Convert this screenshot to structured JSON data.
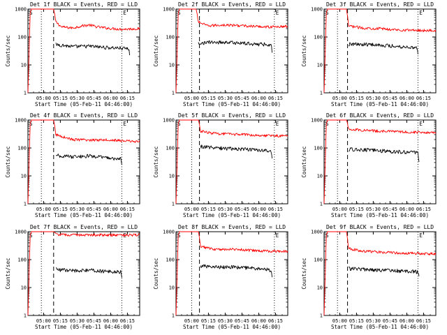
{
  "figure": {
    "xlabel": "Start Time (05-Feb-11 04:46:00)",
    "ylabel": "Counts/sec",
    "y_ticks": [
      "1",
      "10",
      "100",
      "1000"
    ],
    "x_ticks": [
      "05:00",
      "05:15",
      "05:30",
      "05:45",
      "06:00",
      "06:15"
    ],
    "marker_start": "S",
    "marker_end": "E"
  },
  "chart_data": [
    {
      "type": "line",
      "title": "Det 1f  BLACK = Events, RED = LLD",
      "x_unit": "minutes after 04:46",
      "ylim": [
        1,
        1000
      ],
      "y_scale": "log",
      "xlim": [
        0,
        100
      ],
      "x_ticks": [
        14,
        29,
        44,
        59,
        74,
        89
      ],
      "series": [
        {
          "name": "LLD",
          "color": "#ff0000",
          "points": [
            [
              0,
              1
            ],
            [
              2,
              700
            ],
            [
              3,
              1000
            ],
            [
              23,
              1000
            ],
            [
              25,
              350
            ],
            [
              30,
              230
            ],
            [
              40,
              210
            ],
            [
              48,
              250
            ],
            [
              55,
              270
            ],
            [
              62,
              230
            ],
            [
              75,
              200
            ],
            [
              85,
              190
            ],
            [
              100,
              200
            ]
          ]
        },
        {
          "name": "Events",
          "color": "#000000",
          "points": [
            [
              25,
              55
            ],
            [
              40,
              45
            ],
            [
              55,
              47
            ],
            [
              70,
              42
            ],
            [
              83,
              40
            ],
            [
              90,
              38
            ],
            [
              91,
              25
            ]
          ]
        }
      ],
      "vlines": [
        {
          "x": 12,
          "style": "dotted"
        },
        {
          "x": 23,
          "style": "dashed"
        },
        {
          "x": 84,
          "style": "dotted"
        }
      ]
    },
    {
      "type": "line",
      "title": "Det 2f  BLACK = Events, RED = LLD",
      "x_unit": "minutes after 04:46",
      "ylim": [
        1,
        1000
      ],
      "y_scale": "log",
      "xlim": [
        0,
        100
      ],
      "x_ticks": [
        14,
        29,
        44,
        59,
        74,
        89
      ],
      "series": [
        {
          "name": "LLD",
          "color": "#ff0000",
          "points": [
            [
              0,
              1
            ],
            [
              2,
              700
            ],
            [
              3,
              1000
            ],
            [
              18,
              1000
            ],
            [
              20,
              350
            ],
            [
              28,
              250
            ],
            [
              40,
              270
            ],
            [
              55,
              260
            ],
            [
              70,
              240
            ],
            [
              85,
              230
            ],
            [
              100,
              240
            ]
          ]
        },
        {
          "name": "Events",
          "color": "#000000",
          "points": [
            [
              20,
              60
            ],
            [
              30,
              65
            ],
            [
              45,
              65
            ],
            [
              60,
              60
            ],
            [
              75,
              55
            ],
            [
              85,
              55
            ],
            [
              86,
              30
            ]
          ]
        }
      ],
      "vlines": [
        {
          "x": 14,
          "style": "dotted"
        },
        {
          "x": 21,
          "style": "dashed"
        },
        {
          "x": 88,
          "style": "dotted"
        }
      ]
    },
    {
      "type": "line",
      "title": "Det 3f  BLACK = Events, RED = LLD",
      "x_unit": "minutes after 04:46",
      "ylim": [
        1,
        1000
      ],
      "y_scale": "log",
      "xlim": [
        0,
        100
      ],
      "x_ticks": [
        14,
        29,
        44,
        59,
        74,
        89
      ],
      "series": [
        {
          "name": "LLD",
          "color": "#ff0000",
          "points": [
            [
              0,
              1
            ],
            [
              2,
              700
            ],
            [
              3,
              1000
            ],
            [
              20,
              1000
            ],
            [
              22,
              250
            ],
            [
              35,
              210
            ],
            [
              50,
              200
            ],
            [
              65,
              180
            ],
            [
              80,
              175
            ],
            [
              100,
              170
            ]
          ]
        },
        {
          "name": "Events",
          "color": "#000000",
          "points": [
            [
              22,
              55
            ],
            [
              40,
              55
            ],
            [
              55,
              50
            ],
            [
              70,
              45
            ],
            [
              83,
              42
            ],
            [
              84,
              25
            ]
          ]
        }
      ],
      "vlines": [
        {
          "x": 12,
          "style": "dotted"
        },
        {
          "x": 21,
          "style": "dashed"
        },
        {
          "x": 84,
          "style": "dotted"
        }
      ]
    },
    {
      "type": "line",
      "title": "Det 4f  BLACK = Events, RED = LLD",
      "x_unit": "minutes after 04:46",
      "ylim": [
        1,
        1000
      ],
      "y_scale": "log",
      "xlim": [
        0,
        100
      ],
      "x_ticks": [
        14,
        29,
        44,
        59,
        74,
        89
      ],
      "series": [
        {
          "name": "LLD",
          "color": "#ff0000",
          "points": [
            [
              0,
              1
            ],
            [
              2,
              700
            ],
            [
              3,
              1000
            ],
            [
              23,
              1000
            ],
            [
              25,
              300
            ],
            [
              40,
              200
            ],
            [
              55,
              190
            ],
            [
              70,
              200
            ],
            [
              85,
              180
            ],
            [
              100,
              170
            ]
          ]
        },
        {
          "name": "Events",
          "color": "#000000",
          "points": [
            [
              25,
              55
            ],
            [
              40,
              48
            ],
            [
              55,
              52
            ],
            [
              70,
              45
            ],
            [
              83,
              40
            ],
            [
              84,
              25
            ]
          ]
        }
      ],
      "vlines": [
        {
          "x": 12,
          "style": "dotted"
        },
        {
          "x": 23,
          "style": "dashed"
        },
        {
          "x": 84,
          "style": "dotted"
        }
      ]
    },
    {
      "type": "line",
      "title": "Det 5f  BLACK = Events, RED = LLD",
      "x_unit": "minutes after 04:46",
      "ylim": [
        1,
        1000
      ],
      "y_scale": "log",
      "xlim": [
        0,
        100
      ],
      "x_ticks": [
        14,
        29,
        44,
        59,
        74,
        89
      ],
      "series": [
        {
          "name": "LLD",
          "color": "#ff0000",
          "points": [
            [
              0,
              1
            ],
            [
              2,
              700
            ],
            [
              3,
              1000
            ],
            [
              20,
              1000
            ],
            [
              22,
              400
            ],
            [
              35,
              330
            ],
            [
              50,
              310
            ],
            [
              65,
              300
            ],
            [
              80,
              280
            ],
            [
              100,
              270
            ]
          ]
        },
        {
          "name": "Events",
          "color": "#000000",
          "points": [
            [
              22,
              115
            ],
            [
              35,
              100
            ],
            [
              50,
              95
            ],
            [
              65,
              90
            ],
            [
              80,
              80
            ],
            [
              85,
              75
            ],
            [
              86,
              40
            ]
          ]
        }
      ],
      "vlines": [
        {
          "x": 14,
          "style": "dotted"
        },
        {
          "x": 21,
          "style": "dashed"
        },
        {
          "x": 88,
          "style": "dotted"
        }
      ]
    },
    {
      "type": "line",
      "title": "Det 6f  BLACK = Events, RED = LLD",
      "x_unit": "minutes after 04:46",
      "ylim": [
        1,
        1000
      ],
      "y_scale": "log",
      "xlim": [
        0,
        100
      ],
      "x_ticks": [
        14,
        29,
        44,
        59,
        74,
        89
      ],
      "series": [
        {
          "name": "LLD",
          "color": "#ff0000",
          "points": [
            [
              0,
              1
            ],
            [
              2,
              700
            ],
            [
              3,
              1000
            ],
            [
              20,
              1000
            ],
            [
              22,
              480
            ],
            [
              40,
              420
            ],
            [
              60,
              390
            ],
            [
              80,
              370
            ],
            [
              100,
              360
            ]
          ]
        },
        {
          "name": "Events",
          "color": "#000000",
          "points": [
            [
              22,
              90
            ],
            [
              40,
              85
            ],
            [
              60,
              75
            ],
            [
              80,
              70
            ],
            [
              84,
              65
            ],
            [
              85,
              30
            ]
          ]
        }
      ],
      "vlines": [
        {
          "x": 12,
          "style": "dotted"
        },
        {
          "x": 21,
          "style": "dashed"
        },
        {
          "x": 84,
          "style": "dotted"
        }
      ]
    },
    {
      "type": "line",
      "title": "Det 7f  BLACK = Events, RED = LLD",
      "x_unit": "minutes after 04:46",
      "ylim": [
        1,
        1000
      ],
      "y_scale": "log",
      "xlim": [
        0,
        100
      ],
      "x_ticks": [
        14,
        29,
        44,
        59,
        74,
        89
      ],
      "series": [
        {
          "name": "LLD",
          "color": "#ff0000",
          "points": [
            [
              0,
              1
            ],
            [
              2,
              700
            ],
            [
              3,
              1000
            ],
            [
              23,
              1000
            ],
            [
              25,
              800
            ],
            [
              40,
              760
            ],
            [
              55,
              780
            ],
            [
              70,
              760
            ],
            [
              85,
              750
            ],
            [
              100,
              760
            ]
          ]
        },
        {
          "name": "Events",
          "color": "#000000",
          "points": [
            [
              25,
              45
            ],
            [
              40,
              40
            ],
            [
              55,
              42
            ],
            [
              70,
              38
            ],
            [
              83,
              36
            ],
            [
              84,
              25
            ]
          ]
        }
      ],
      "vlines": [
        {
          "x": 12,
          "style": "dotted"
        },
        {
          "x": 23,
          "style": "dashed"
        },
        {
          "x": 84,
          "style": "dotted"
        }
      ]
    },
    {
      "type": "line",
      "title": "Det 8f  BLACK = Events, RED = LLD",
      "x_unit": "minutes after 04:46",
      "ylim": [
        1,
        1000
      ],
      "y_scale": "log",
      "xlim": [
        0,
        100
      ],
      "x_ticks": [
        14,
        29,
        44,
        59,
        74,
        89
      ],
      "series": [
        {
          "name": "LLD",
          "color": "#ff0000",
          "points": [
            [
              0,
              1
            ],
            [
              2,
              700
            ],
            [
              3,
              1000
            ],
            [
              20,
              1000
            ],
            [
              22,
              300
            ],
            [
              35,
              230
            ],
            [
              50,
              240
            ],
            [
              65,
              220
            ],
            [
              80,
              200
            ],
            [
              100,
              200
            ]
          ]
        },
        {
          "name": "Events",
          "color": "#000000",
          "points": [
            [
              22,
              60
            ],
            [
              35,
              55
            ],
            [
              50,
              55
            ],
            [
              65,
              50
            ],
            [
              80,
              45
            ],
            [
              85,
              42
            ],
            [
              86,
              25
            ]
          ]
        }
      ],
      "vlines": [
        {
          "x": 14,
          "style": "dotted"
        },
        {
          "x": 21,
          "style": "dashed"
        },
        {
          "x": 88,
          "style": "dotted"
        }
      ]
    },
    {
      "type": "line",
      "title": "Det 9f  BLACK = Events, RED = LLD",
      "x_unit": "minutes after 04:46",
      "ylim": [
        1,
        1000
      ],
      "y_scale": "log",
      "xlim": [
        0,
        100
      ],
      "x_ticks": [
        14,
        29,
        44,
        59,
        74,
        89
      ],
      "series": [
        {
          "name": "LLD",
          "color": "#ff0000",
          "points": [
            [
              0,
              1
            ],
            [
              2,
              700
            ],
            [
              3,
              1000
            ],
            [
              20,
              1000
            ],
            [
              22,
              250
            ],
            [
              35,
              200
            ],
            [
              50,
              190
            ],
            [
              65,
              175
            ],
            [
              80,
              170
            ],
            [
              100,
              160
            ]
          ]
        },
        {
          "name": "Events",
          "color": "#000000",
          "points": [
            [
              22,
              48
            ],
            [
              35,
              45
            ],
            [
              50,
              42
            ],
            [
              65,
              40
            ],
            [
              80,
              38
            ],
            [
              84,
              36
            ],
            [
              85,
              25
            ]
          ]
        }
      ],
      "vlines": [
        {
          "x": 12,
          "style": "dotted"
        },
        {
          "x": 21,
          "style": "dashed"
        },
        {
          "x": 84,
          "style": "dotted"
        }
      ]
    }
  ]
}
